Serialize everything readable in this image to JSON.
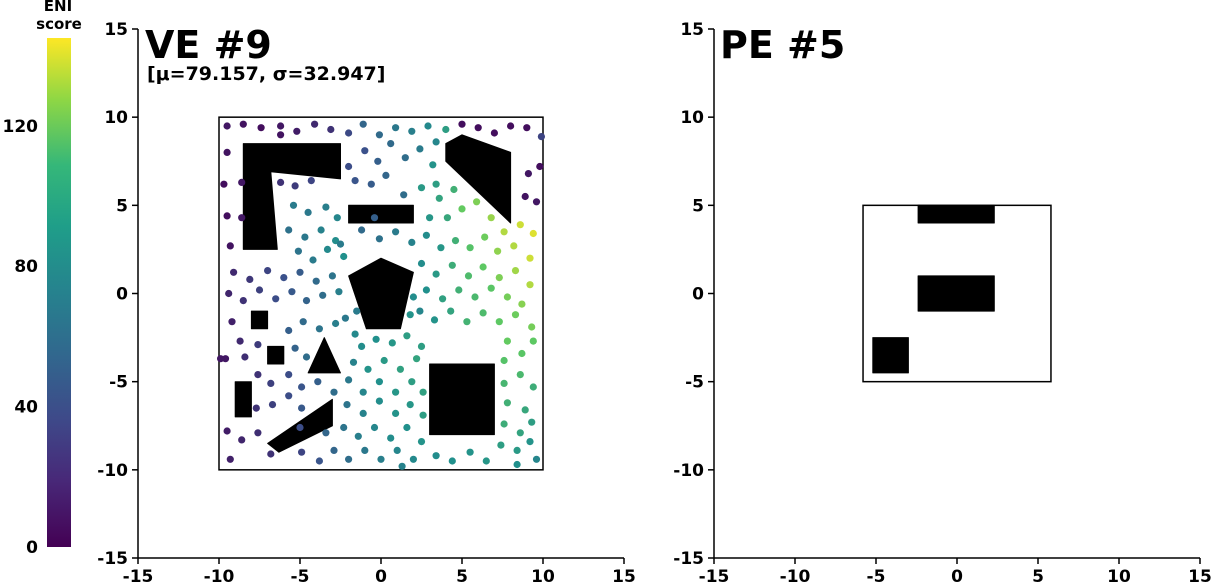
{
  "colorbar": {
    "title_line1": "ENI",
    "title_line2": "score",
    "ticks": [
      0,
      40,
      80,
      120
    ],
    "range": [
      0,
      145
    ],
    "colormap": "viridis",
    "colors": [
      "#440154",
      "#3b528b",
      "#21918c",
      "#5ec962",
      "#fde725"
    ]
  },
  "chart_data": [
    {
      "type": "scatter",
      "title": "VE #9",
      "subtitle": "[μ=79.157, σ=32.947]",
      "xlim": [
        -15,
        15
      ],
      "ylim": [
        -15,
        15
      ],
      "xticks": [
        -15,
        -10,
        -5,
        0,
        5,
        10,
        15
      ],
      "yticks": [
        -15,
        -10,
        -5,
        0,
        5,
        10,
        15
      ],
      "boundary": [
        -10,
        10,
        -10,
        10
      ],
      "obstacles": [
        [
          [
            -8.5,
            8.5
          ],
          [
            -2.5,
            8.5
          ],
          [
            -2.5,
            6.5
          ],
          [
            -6.8,
            6.9
          ],
          [
            -6.4,
            2.5
          ],
          [
            -8.5,
            2.5
          ]
        ],
        [
          [
            -2,
            5
          ],
          [
            2,
            5
          ],
          [
            2,
            4
          ],
          [
            -2,
            4
          ]
        ],
        [
          [
            4,
            8.5
          ],
          [
            5,
            9
          ],
          [
            8,
            8
          ],
          [
            8,
            4
          ],
          [
            4,
            7.5
          ]
        ],
        [
          [
            -2,
            1
          ],
          [
            0,
            2
          ],
          [
            2,
            1.2
          ],
          [
            1.2,
            -2
          ],
          [
            -0.9,
            -2
          ]
        ],
        [
          [
            -8,
            -1
          ],
          [
            -7,
            -1
          ],
          [
            -7,
            -2
          ],
          [
            -8,
            -2
          ]
        ],
        [
          [
            -7,
            -3
          ],
          [
            -6,
            -3
          ],
          [
            -6,
            -4
          ],
          [
            -7,
            -4
          ]
        ],
        [
          [
            -4.5,
            -4.5
          ],
          [
            -3.5,
            -2.5
          ],
          [
            -2.5,
            -4.5
          ]
        ],
        [
          [
            -9,
            -5
          ],
          [
            -8,
            -5
          ],
          [
            -8,
            -7
          ],
          [
            -9,
            -7
          ]
        ],
        [
          [
            -7,
            -8.5
          ],
          [
            -3,
            -6
          ],
          [
            -3,
            -7.5
          ],
          [
            -6.3,
            -9
          ]
        ],
        [
          [
            3,
            -4
          ],
          [
            7,
            -4
          ],
          [
            7,
            -8
          ],
          [
            3,
            -8
          ]
        ]
      ],
      "points": [
        [
          -9.5,
          9.5,
          10
        ],
        [
          -8.5,
          9.6,
          8
        ],
        [
          -7.4,
          9.4,
          6
        ],
        [
          -6.2,
          9.5,
          10
        ],
        [
          -5.2,
          9.2,
          12
        ],
        [
          -4.1,
          9.6,
          18
        ],
        [
          -3.1,
          9.3,
          22
        ],
        [
          -2,
          9.1,
          32
        ],
        [
          -1.1,
          9.6,
          48
        ],
        [
          -0.1,
          9.0,
          50
        ],
        [
          0.9,
          9.4,
          58
        ],
        [
          1.9,
          9.2,
          62
        ],
        [
          2.9,
          9.5,
          68
        ],
        [
          4.0,
          9.3,
          80
        ],
        [
          5.0,
          9.6,
          6
        ],
        [
          6.0,
          9.4,
          6
        ],
        [
          7.0,
          9.1,
          6
        ],
        [
          8.0,
          9.5,
          6
        ],
        [
          9.0,
          9.4,
          6
        ],
        [
          9.9,
          8.9,
          30
        ],
        [
          -9.5,
          8.0,
          8
        ],
        [
          -9.7,
          6.2,
          6
        ],
        [
          -8.6,
          6.3,
          10
        ],
        [
          -9.5,
          4.4,
          6
        ],
        [
          -8.6,
          4.3,
          10
        ],
        [
          -9.3,
          2.7,
          8
        ],
        [
          -6.2,
          6.3,
          22
        ],
        [
          -5.3,
          6.1,
          26
        ],
        [
          -4.3,
          6.4,
          30
        ],
        [
          -2.0,
          7.2,
          34
        ],
        [
          -1.0,
          8.1,
          36
        ],
        [
          -0.2,
          7.5,
          44
        ],
        [
          0.6,
          8.5,
          50
        ],
        [
          1.5,
          7.7,
          52
        ],
        [
          2.4,
          8.2,
          60
        ],
        [
          3.4,
          8.6,
          66
        ],
        [
          3.2,
          7.3,
          74
        ],
        [
          2.5,
          6.0,
          78
        ],
        [
          -1.6,
          6.4,
          38
        ],
        [
          -0.6,
          6.2,
          42
        ],
        [
          0.3,
          6.7,
          48
        ],
        [
          1.4,
          5.6,
          52
        ],
        [
          3.6,
          5.4,
          84
        ],
        [
          4.5,
          5.9,
          92
        ],
        [
          5.0,
          4.8,
          110
        ],
        [
          5.9,
          5.2,
          116
        ],
        [
          6.8,
          4.3,
          122
        ],
        [
          7.6,
          3.5,
          128
        ],
        [
          8.6,
          3.9,
          134
        ],
        [
          9.4,
          3.4,
          138
        ],
        [
          9.1,
          6.8,
          10
        ],
        [
          8.9,
          5.5,
          8
        ],
        [
          9.8,
          7.2,
          6
        ],
        [
          9.6,
          5.2,
          10
        ],
        [
          -5.4,
          5.0,
          60
        ],
        [
          -4.5,
          4.6,
          58
        ],
        [
          -3.4,
          4.9,
          62
        ],
        [
          -2.7,
          4.3,
          66
        ],
        [
          -5.7,
          3.6,
          54
        ],
        [
          -4.7,
          3.2,
          58
        ],
        [
          -3.7,
          3.6,
          64
        ],
        [
          -2.8,
          3.0,
          70
        ],
        [
          -5.1,
          2.4,
          56
        ],
        [
          -4.2,
          1.9,
          60
        ],
        [
          -3.3,
          2.5,
          68
        ],
        [
          -2.3,
          2.1,
          72
        ],
        [
          -1.2,
          3.6,
          50
        ],
        [
          -0.1,
          3.1,
          54
        ],
        [
          0.9,
          3.5,
          60
        ],
        [
          1.9,
          2.9,
          64
        ],
        [
          2.8,
          3.3,
          70
        ],
        [
          3.7,
          2.6,
          76
        ],
        [
          4.6,
          3.0,
          92
        ],
        [
          5.5,
          2.6,
          104
        ],
        [
          6.4,
          3.2,
          112
        ],
        [
          7.2,
          2.4,
          120
        ],
        [
          8.2,
          2.7,
          128
        ],
        [
          9.2,
          2.0,
          134
        ],
        [
          -9.1,
          1.2,
          18
        ],
        [
          -8.1,
          0.8,
          24
        ],
        [
          -7.0,
          1.3,
          30
        ],
        [
          -6.0,
          0.9,
          36
        ],
        [
          -5.0,
          1.2,
          42
        ],
        [
          -4.0,
          0.7,
          50
        ],
        [
          -3.0,
          1.0,
          56
        ],
        [
          -2.6,
          0.1,
          62
        ],
        [
          -9.4,
          0.0,
          16
        ],
        [
          -8.5,
          -0.4,
          22
        ],
        [
          -7.5,
          0.2,
          28
        ],
        [
          -6.5,
          -0.3,
          34
        ],
        [
          -5.5,
          0.1,
          40
        ],
        [
          -4.6,
          -0.4,
          46
        ],
        [
          -3.6,
          -0.1,
          52
        ],
        [
          2.5,
          1.7,
          70
        ],
        [
          3.4,
          1.1,
          78
        ],
        [
          4.4,
          1.6,
          90
        ],
        [
          5.4,
          1.0,
          100
        ],
        [
          6.3,
          1.5,
          108
        ],
        [
          7.3,
          0.9,
          116
        ],
        [
          8.3,
          1.3,
          124
        ],
        [
          9.2,
          0.5,
          128
        ],
        [
          2.8,
          0.2,
          72
        ],
        [
          3.8,
          -0.3,
          82
        ],
        [
          4.8,
          0.2,
          92
        ],
        [
          5.8,
          -0.2,
          98
        ],
        [
          6.8,
          0.3,
          106
        ],
        [
          7.8,
          -0.2,
          114
        ],
        [
          8.7,
          -0.6,
          118
        ],
        [
          2.4,
          -1.0,
          66
        ],
        [
          3.3,
          -1.5,
          74
        ],
        [
          4.3,
          -1.0,
          84
        ],
        [
          5.3,
          -1.6,
          94
        ],
        [
          6.3,
          -1.1,
          100
        ],
        [
          7.3,
          -1.6,
          108
        ],
        [
          8.3,
          -1.2,
          112
        ],
        [
          9.3,
          -1.9,
          114
        ],
        [
          -9.2,
          -1.6,
          14
        ],
        [
          -8.7,
          -2.7,
          18
        ],
        [
          -9.6,
          -3.7,
          10
        ],
        [
          -8.4,
          -3.6,
          20
        ],
        [
          -7.6,
          -2.9,
          26
        ],
        [
          -5.7,
          -2.1,
          44
        ],
        [
          -4.8,
          -1.6,
          50
        ],
        [
          -3.8,
          -2.0,
          56
        ],
        [
          -2.8,
          -1.7,
          62
        ],
        [
          -1.6,
          -2.3,
          68
        ],
        [
          -5.3,
          -3.1,
          46
        ],
        [
          -4.6,
          -3.6,
          52
        ],
        [
          -1.2,
          -3.0,
          70
        ],
        [
          -0.3,
          -2.6,
          72
        ],
        [
          0.7,
          -2.8,
          76
        ],
        [
          1.6,
          -2.4,
          80
        ],
        [
          2.5,
          -3.0,
          80
        ],
        [
          -1.7,
          -3.9,
          64
        ],
        [
          -0.8,
          -4.3,
          74
        ],
        [
          0.2,
          -3.8,
          78
        ],
        [
          1.2,
          -4.3,
          82
        ],
        [
          2.2,
          -3.7,
          84
        ],
        [
          7.8,
          -2.7,
          110
        ],
        [
          8.7,
          -3.4,
          106
        ],
        [
          9.4,
          -2.7,
          108
        ],
        [
          7.6,
          -3.8,
          104
        ],
        [
          -7.6,
          -4.6,
          22
        ],
        [
          -6.8,
          -5.1,
          28
        ],
        [
          -5.7,
          -4.6,
          34
        ],
        [
          -4.9,
          -5.3,
          38
        ],
        [
          -3.9,
          -5.0,
          44
        ],
        [
          -2.9,
          -5.6,
          52
        ],
        [
          -2.0,
          -4.9,
          58
        ],
        [
          -1.1,
          -5.6,
          66
        ],
        [
          -0.1,
          -5.0,
          72
        ],
        [
          0.9,
          -5.6,
          76
        ],
        [
          1.9,
          -5.0,
          80
        ],
        [
          2.6,
          -5.6,
          82
        ],
        [
          7.6,
          -5.1,
          96
        ],
        [
          8.6,
          -4.6,
          98
        ],
        [
          9.4,
          -5.3,
          90
        ],
        [
          7.8,
          -6.2,
          92
        ],
        [
          8.9,
          -6.6,
          86
        ],
        [
          -7.7,
          -6.5,
          22
        ],
        [
          -6.7,
          -6.3,
          28
        ],
        [
          -5.7,
          -5.8,
          34
        ],
        [
          -4.9,
          -6.5,
          40
        ],
        [
          -2.1,
          -6.3,
          56
        ],
        [
          -1.1,
          -6.8,
          64
        ],
        [
          -0.1,
          -6.1,
          70
        ],
        [
          0.9,
          -6.8,
          74
        ],
        [
          1.8,
          -6.3,
          76
        ],
        [
          2.6,
          -6.9,
          80
        ],
        [
          7.6,
          -7.4,
          90
        ],
        [
          8.6,
          -7.9,
          84
        ],
        [
          9.3,
          -7.3,
          80
        ],
        [
          -9.5,
          -7.8,
          12
        ],
        [
          -8.6,
          -8.3,
          16
        ],
        [
          -7.6,
          -7.9,
          20
        ],
        [
          -5.0,
          -7.6,
          34
        ],
        [
          -3.4,
          -7.9,
          48
        ],
        [
          -2.3,
          -7.6,
          56
        ],
        [
          -1.4,
          -8.1,
          62
        ],
        [
          -0.4,
          -7.6,
          66
        ],
        [
          0.6,
          -8.2,
          70
        ],
        [
          1.6,
          -7.6,
          72
        ],
        [
          2.5,
          -8.4,
          74
        ],
        [
          7.4,
          -8.6,
          80
        ],
        [
          8.4,
          -8.9,
          78
        ],
        [
          9.2,
          -8.4,
          74
        ],
        [
          -9.3,
          -9.4,
          14
        ],
        [
          -6.8,
          -9.1,
          22
        ],
        [
          -4.9,
          -9.0,
          30
        ],
        [
          -3.8,
          -9.5,
          38
        ],
        [
          -2.9,
          -8.9,
          48
        ],
        [
          -2.0,
          -9.4,
          52
        ],
        [
          -1.0,
          -8.9,
          58
        ],
        [
          0.0,
          -9.4,
          62
        ],
        [
          1.0,
          -8.9,
          66
        ],
        [
          1.3,
          -9.8,
          64
        ],
        [
          2.0,
          -9.4,
          68
        ],
        [
          3.4,
          -9.2,
          70
        ],
        [
          4.4,
          -9.5,
          72
        ],
        [
          5.5,
          -9.0,
          74
        ],
        [
          6.5,
          -9.5,
          76
        ],
        [
          8.4,
          -9.7,
          72
        ],
        [
          9.6,
          -9.4,
          66
        ],
        [
          -9.9,
          -3.7,
          10
        ],
        [
          -6.2,
          9.0,
          8
        ],
        [
          -0.4,
          4.3,
          44
        ],
        [
          -2.5,
          2.8,
          60
        ],
        [
          3.0,
          4.3,
          76
        ],
        [
          4.1,
          4.3,
          86
        ],
        [
          3.4,
          6.2,
          80
        ],
        [
          -1.5,
          -1.0,
          60
        ],
        [
          -2.2,
          -1.4,
          58
        ],
        [
          1.8,
          -1.2,
          74
        ],
        [
          2.0,
          -0.2,
          70
        ]
      ]
    },
    {
      "type": "scatter",
      "title": "PE #5",
      "subtitle": "",
      "xlim": [
        -15,
        15
      ],
      "ylim": [
        -15,
        15
      ],
      "xticks": [
        -15,
        -10,
        -5,
        0,
        5,
        10,
        15
      ],
      "yticks": [
        -15,
        -10,
        -5,
        0,
        5,
        10,
        15
      ],
      "boundary": [
        -5.8,
        5.8,
        -5,
        5
      ],
      "obstacles": [
        [
          [
            -2.4,
            5
          ],
          [
            2.3,
            5
          ],
          [
            2.3,
            4
          ],
          [
            -2.4,
            4
          ]
        ],
        [
          [
            -2.4,
            1
          ],
          [
            2.3,
            1
          ],
          [
            2.3,
            -1
          ],
          [
            -2.4,
            -1
          ]
        ],
        [
          [
            -5.2,
            -2.5
          ],
          [
            -3,
            -2.5
          ],
          [
            -3,
            -4.5
          ],
          [
            -5.2,
            -4.5
          ]
        ]
      ],
      "points": []
    }
  ]
}
